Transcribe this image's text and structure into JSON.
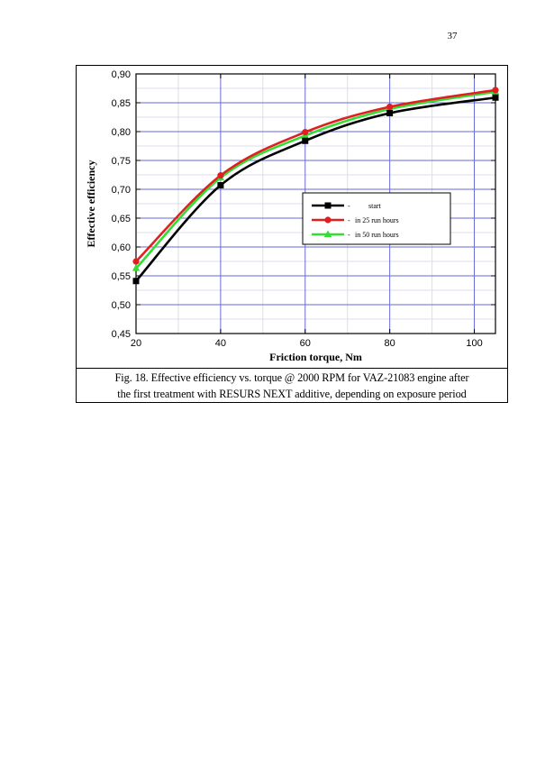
{
  "page": {
    "number": "37"
  },
  "figure": {
    "caption_line1": "Fig. 18. Effective efficiency vs. torque @ 2000 RPM for VAZ-21083 engine after",
    "caption_line2": "the first treatment with RESURS NEXT additive, depending on exposure period"
  },
  "chart_data": {
    "type": "line",
    "title": "",
    "xlabel": "Friction torque, Nm",
    "ylabel": "Effective efficiency",
    "xlim": [
      20,
      105
    ],
    "ylim": [
      0.45,
      0.9
    ],
    "x_ticks": [
      20,
      40,
      60,
      80,
      100
    ],
    "x_tick_labels": [
      "20",
      "40",
      "60",
      "80",
      "100"
    ],
    "y_ticks": [
      0.45,
      0.5,
      0.55,
      0.6,
      0.65,
      0.7,
      0.75,
      0.8,
      0.85,
      0.9
    ],
    "y_tick_labels": [
      "0,45",
      "0,50",
      "0,55",
      "0,60",
      "0,65",
      "0,70",
      "0,75",
      "0,80",
      "0,85",
      "0,90"
    ],
    "grid": true,
    "legend_position": "center-right",
    "series": [
      {
        "name": "start",
        "color": "#000000",
        "marker": "square",
        "x": [
          20,
          40,
          60,
          80,
          105
        ],
        "y": [
          0.541,
          0.707,
          0.784,
          0.832,
          0.859
        ]
      },
      {
        "name": "in 25 run hours",
        "color": "#e02020",
        "marker": "circle",
        "x": [
          20,
          40,
          60,
          80,
          105
        ],
        "y": [
          0.575,
          0.724,
          0.799,
          0.843,
          0.872
        ]
      },
      {
        "name": "in 50 run hours",
        "color": "#33dd33",
        "marker": "triangle",
        "x": [
          20,
          40,
          60,
          80,
          105
        ],
        "y": [
          0.563,
          0.72,
          0.793,
          0.839,
          0.869
        ]
      }
    ]
  }
}
